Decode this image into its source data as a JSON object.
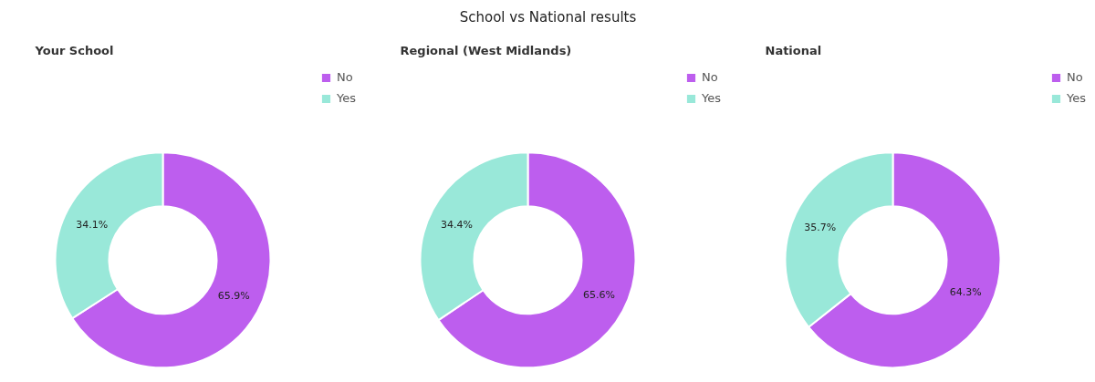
{
  "chart_data": [
    {
      "type": "other",
      "title": "School vs National results"
    },
    {
      "type": "donut",
      "title": "Your School",
      "categories": [
        "No",
        "Yes"
      ],
      "values": [
        65.9,
        34.1
      ],
      "value_labels": [
        "65.9%",
        "34.1%"
      ],
      "colors": [
        "#bd5eee",
        "#99e8d9"
      ],
      "legend": "top right"
    },
    {
      "type": "donut",
      "title": "Regional (West Midlands)",
      "categories": [
        "No",
        "Yes"
      ],
      "values": [
        65.6,
        34.4
      ],
      "value_labels": [
        "65.6%",
        "34.4%"
      ],
      "colors": [
        "#bd5eee",
        "#99e8d9"
      ],
      "legend": "top right"
    },
    {
      "type": "donut",
      "title": "National",
      "categories": [
        "No",
        "Yes"
      ],
      "values": [
        64.3,
        35.7
      ],
      "value_labels": [
        "64.3%",
        "35.7%"
      ],
      "colors": [
        "#bd5eee",
        "#99e8d9"
      ],
      "legend": "top right"
    }
  ]
}
